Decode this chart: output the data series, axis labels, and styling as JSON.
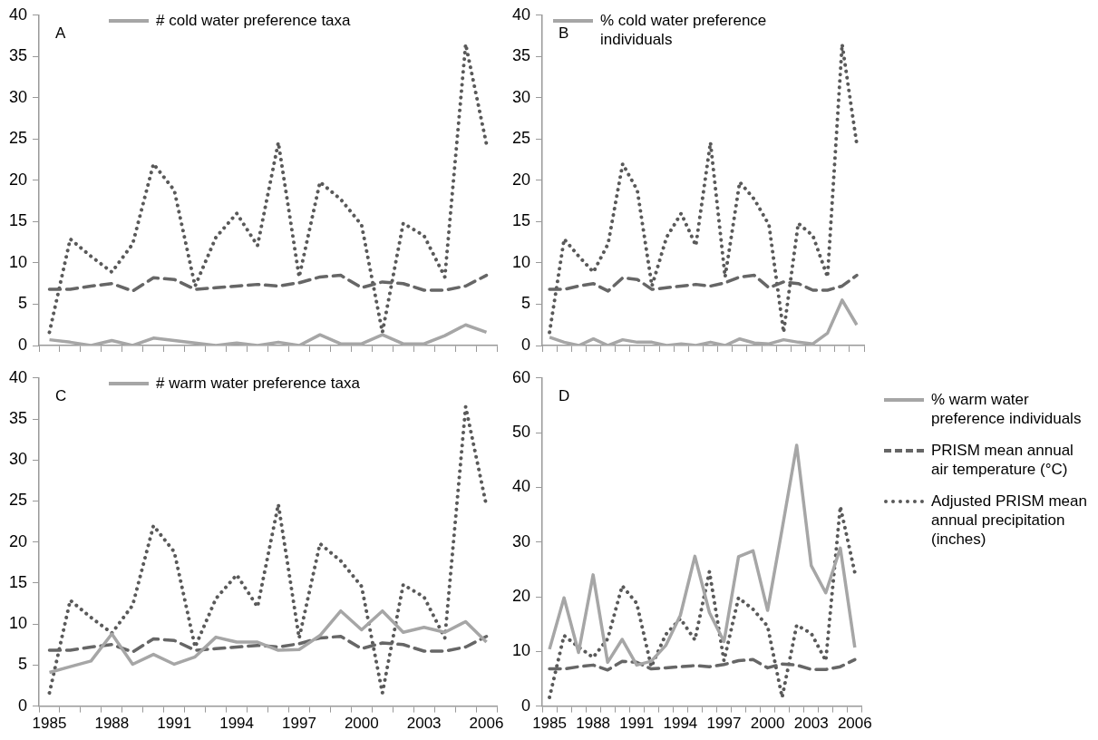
{
  "chart_data": [
    {
      "type": "line",
      "annotations": [
        "A"
      ],
      "categories": [
        "1985",
        null,
        null,
        "1988",
        null,
        null,
        "1991",
        null,
        null,
        "1994",
        null,
        null,
        "1997",
        null,
        null,
        "2000",
        null,
        null,
        "2003",
        null,
        null,
        "2006"
      ],
      "ylim": [
        0,
        40
      ],
      "yticks": [
        0,
        5,
        10,
        15,
        20,
        25,
        30,
        35,
        40
      ],
      "legend": "top",
      "tick_labels": "y",
      "series": [
        {
          "name": "# cold water preference taxa",
          "color": "#a6a6a6",
          "line_style": "solid",
          "values": [
            0.7,
            0.4,
            0,
            0.6,
            0,
            0.9,
            0.6,
            0.3,
            0,
            0.3,
            0,
            0.4,
            0,
            1.3,
            0.2,
            0.2,
            1.3,
            0.2,
            0.2,
            1.2,
            2.5,
            1.6
          ]
        },
        {
          "color": "#666666",
          "line_style": "dashed",
          "values": [
            6.8,
            6.8,
            7.2,
            7.5,
            6.6,
            8.2,
            8.0,
            6.8,
            7.0,
            7.2,
            7.4,
            7.2,
            7.6,
            8.3,
            8.5,
            7.0,
            7.7,
            7.5,
            6.7,
            6.7,
            7.2,
            8.5
          ]
        },
        {
          "color": "#595959",
          "line_style": "dotted",
          "values": [
            1.6,
            12.9,
            10.8,
            8.9,
            12.3,
            22.0,
            18.8,
            7.2,
            13.1,
            16.0,
            12.1,
            24.6,
            8.3,
            19.8,
            17.7,
            14.6,
            1.6,
            14.8,
            13.3,
            8.3,
            36.5,
            24.4
          ]
        }
      ]
    },
    {
      "type": "line",
      "annotations": [
        "B"
      ],
      "categories": [
        "1985",
        null,
        null,
        "1988",
        null,
        null,
        "1991",
        null,
        null,
        "1994",
        null,
        null,
        "1997",
        null,
        null,
        "2000",
        null,
        null,
        "2003",
        null,
        null,
        "2006"
      ],
      "ylim": [
        0,
        40
      ],
      "yticks": [
        0,
        5,
        10,
        15,
        20,
        25,
        30,
        35,
        40
      ],
      "legend": "top",
      "tick_labels": "y",
      "series": [
        {
          "name": "% cold water preference individuals",
          "color": "#a6a6a6",
          "line_style": "solid",
          "values": [
            1.0,
            0.4,
            0,
            0.8,
            0,
            0.7,
            0.4,
            0.4,
            0,
            0.2,
            0,
            0.4,
            0,
            0.8,
            0.3,
            0.2,
            0.7,
            0.4,
            0.2,
            1.5,
            5.5,
            2.5
          ]
        },
        {
          "color": "#666666",
          "line_style": "dashed",
          "values": [
            6.8,
            6.8,
            7.2,
            7.5,
            6.6,
            8.2,
            8.0,
            6.8,
            7.0,
            7.2,
            7.4,
            7.2,
            7.6,
            8.3,
            8.5,
            7.0,
            7.7,
            7.5,
            6.7,
            6.7,
            7.2,
            8.5
          ]
        },
        {
          "color": "#595959",
          "line_style": "dotted",
          "values": [
            1.6,
            12.9,
            10.8,
            8.9,
            12.3,
            22.0,
            18.8,
            7.2,
            13.1,
            16.0,
            12.1,
            24.6,
            8.3,
            19.8,
            17.7,
            14.6,
            1.6,
            14.8,
            13.3,
            8.3,
            36.5,
            24.4
          ]
        }
      ]
    },
    {
      "type": "line",
      "annotations": [
        "C"
      ],
      "categories": [
        "1985",
        null,
        null,
        "1988",
        null,
        null,
        "1991",
        null,
        null,
        "1994",
        null,
        null,
        "1997",
        null,
        null,
        "2000",
        null,
        null,
        "2003",
        null,
        null,
        "2006"
      ],
      "ylim": [
        0,
        40
      ],
      "yticks": [
        0,
        5,
        10,
        15,
        20,
        25,
        30,
        35,
        40
      ],
      "legend": "top",
      "series": [
        {
          "name": "# warm water preference taxa",
          "color": "#a6a6a6",
          "line_style": "solid",
          "values": [
            4.1,
            4.8,
            5.5,
            8.8,
            5.1,
            6.3,
            5.1,
            6.0,
            8.4,
            7.8,
            7.8,
            6.8,
            6.9,
            8.6,
            11.6,
            9.3,
            11.6,
            9.0,
            9.6,
            9.0,
            10.3,
            7.8
          ]
        },
        {
          "color": "#666666",
          "line_style": "dashed",
          "values": [
            6.8,
            6.8,
            7.2,
            7.5,
            6.6,
            8.2,
            8.0,
            6.8,
            7.0,
            7.2,
            7.4,
            7.2,
            7.6,
            8.3,
            8.5,
            7.0,
            7.7,
            7.5,
            6.7,
            6.7,
            7.2,
            8.5
          ]
        },
        {
          "color": "#595959",
          "line_style": "dotted",
          "values": [
            1.6,
            12.9,
            10.8,
            8.9,
            12.3,
            22.0,
            18.8,
            7.2,
            13.1,
            16.0,
            12.1,
            24.6,
            8.3,
            19.8,
            17.7,
            14.6,
            1.6,
            14.8,
            13.3,
            8.3,
            36.5,
            24.4
          ]
        }
      ]
    },
    {
      "type": "line",
      "annotations": [
        "D"
      ],
      "categories": [
        "1985",
        null,
        null,
        "1988",
        null,
        null,
        "1991",
        null,
        null,
        "1994",
        null,
        null,
        "1997",
        null,
        null,
        "2000",
        null,
        null,
        "2003",
        null,
        null,
        "2006"
      ],
      "ylim": [
        0,
        60
      ],
      "yticks": [
        0,
        10,
        20,
        30,
        40,
        50,
        60
      ],
      "legend": "right",
      "series": [
        {
          "name": "% warm water preference individuals",
          "color": "#a6a6a6",
          "line_style": "solid",
          "values": [
            10.4,
            19.8,
            9.8,
            24.0,
            8.0,
            12.2,
            7.5,
            8.2,
            11.1,
            16.6,
            27.4,
            17.1,
            11.8,
            27.3,
            28.4,
            17.5,
            32.4,
            47.7,
            25.7,
            20.7,
            28.9,
            10.7
          ]
        },
        {
          "name": "PRISM mean annual air temperature (°C)",
          "color": "#666666",
          "line_style": "dashed",
          "values": [
            6.8,
            6.8,
            7.2,
            7.5,
            6.6,
            8.2,
            8.0,
            6.8,
            7.0,
            7.2,
            7.4,
            7.2,
            7.6,
            8.3,
            8.5,
            7.0,
            7.7,
            7.5,
            6.7,
            6.7,
            7.2,
            8.5
          ]
        },
        {
          "name": "Adjusted PRISM mean annual precipitation (inches)",
          "color": "#595959",
          "line_style": "dotted",
          "values": [
            1.6,
            12.9,
            10.8,
            8.9,
            12.3,
            22.0,
            18.8,
            7.2,
            13.1,
            16.0,
            12.1,
            24.6,
            8.3,
            19.8,
            17.7,
            14.6,
            1.6,
            14.8,
            13.3,
            8.3,
            36.5,
            24.4
          ]
        }
      ]
    }
  ]
}
